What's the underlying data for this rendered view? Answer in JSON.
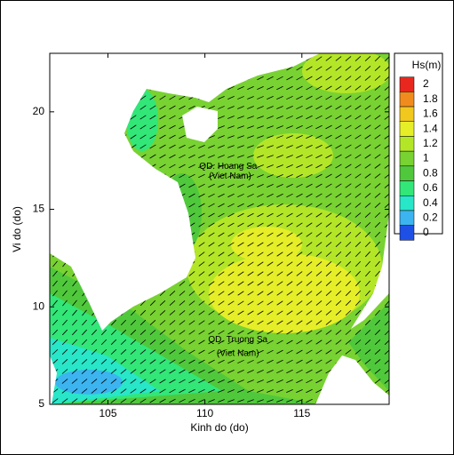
{
  "chart_data": {
    "type": "heatmap",
    "xlabel": "Kinh do (do)",
    "ylabel": "Vi do (do)",
    "xlim": [
      102,
      119.5
    ],
    "ylim": [
      5,
      23
    ],
    "xticks": [
      105,
      110,
      115
    ],
    "yticks": [
      5,
      10,
      15,
      20
    ],
    "annotations": [
      {
        "text": "QD. Hoang Sa",
        "x": 111.2,
        "y": 17.2
      },
      {
        "text": "(Viet Nam)",
        "x": 111.3,
        "y": 16.7
      },
      {
        "text": "QD. Truong Sa",
        "x": 111.7,
        "y": 8.3
      },
      {
        "text": "(Viet Nam)",
        "x": 111.7,
        "y": 7.6
      }
    ],
    "colorbar": {
      "title": "Hs(m)",
      "ticks": [
        2,
        1.8,
        1.6,
        1.4,
        1.2,
        1,
        0.8,
        0.6,
        0.4,
        0.2,
        0
      ],
      "colors": [
        "#e8281e",
        "#f08c1e",
        "#f0c81e",
        "#e6ee28",
        "#b4e628",
        "#78d232",
        "#50c83c",
        "#32e678",
        "#28e6c8",
        "#3cb4f0",
        "#1e50e6"
      ]
    }
  }
}
